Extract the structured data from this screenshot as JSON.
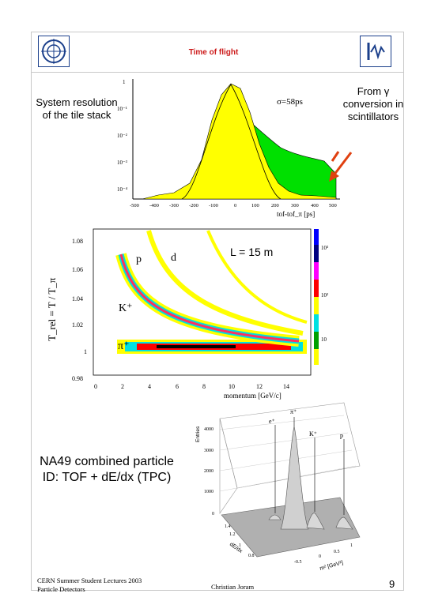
{
  "slide": {
    "title": "Time of flight",
    "note_left": "System resolution of the tile stack",
    "note_right": "From γ conversion in scintillators",
    "na49": "NA49 combined particle ID: TOF + dE/dx (TPC)",
    "footer_left_line1": "CERN Summer Student Lectures 2003",
    "footer_left_line2": "Particle Detectors",
    "footer_mid": "Christian Joram",
    "page_number": "9"
  },
  "logos": {
    "left": "cern-logo-icon",
    "right": "institute-logo-icon"
  },
  "colors": {
    "title": "#cc1a1a",
    "histogram_yellow": "#ffff00",
    "histogram_green": "#00e000",
    "arrow": "#e04010"
  },
  "tof_plot": {
    "sigma_label": "σ=58ps",
    "xlabel": "tof-tof_π [ps]",
    "x_ticks": [
      "-500",
      "-400",
      "-300",
      "-200",
      "-100",
      "0",
      "100",
      "200",
      "300",
      "400",
      "500"
    ],
    "y_ticks": [
      "1",
      "10⁻¹",
      "10⁻²",
      "10⁻³",
      "10⁻⁴"
    ]
  },
  "trel_plot": {
    "ylabel": "T_rel = T / T_π",
    "xlabel": "momentum [GeV/c]",
    "annotation": "L = 15 m",
    "particle_labels": [
      "p",
      "d",
      "K⁺",
      "π⁺"
    ],
    "x_ticks": [
      "0",
      "2",
      "4",
      "6",
      "8",
      "10",
      "12",
      "14"
    ],
    "y_ticks": [
      "1.08",
      "1.06",
      "1.04",
      "1.02",
      "1",
      "0.98"
    ],
    "colorbar_ticks": [
      "10³",
      "10²",
      "10"
    ]
  },
  "lego_plot": {
    "zlabel": "Entries",
    "z_ticks": [
      "4000",
      "3000",
      "2000",
      "1000",
      "0"
    ],
    "peak_labels": [
      "e⁺",
      "π⁺",
      "K⁺",
      "p"
    ],
    "xlabel": "m² [GeV²]",
    "ylabel": "dE/dx",
    "x_ticks": [
      "-0.5",
      "0",
      "0.5",
      "1"
    ],
    "y_ticks": [
      "1.4",
      "1.2",
      "1",
      "0.8"
    ]
  }
}
